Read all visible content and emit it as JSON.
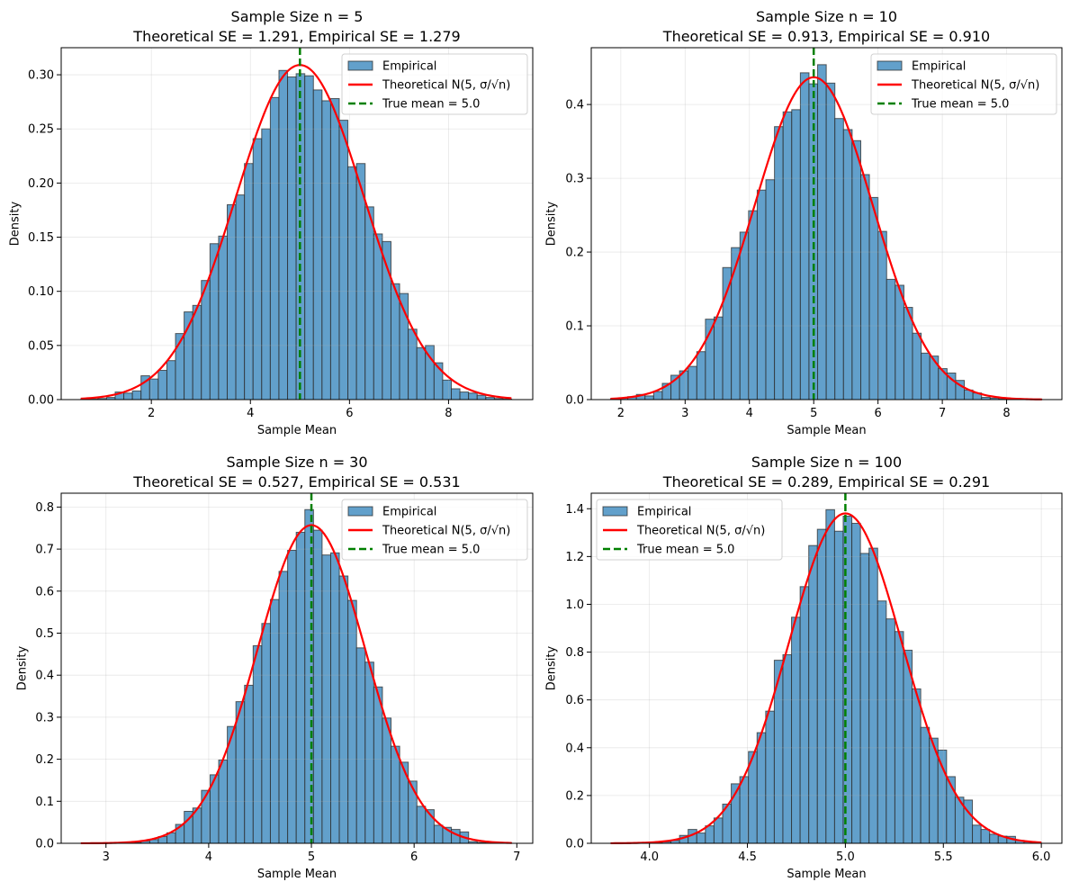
{
  "chart_data": [
    {
      "type": "bar",
      "kind": "histogram",
      "title": "Sample Size n = 5",
      "subtitle": "Theoretical SE = 1.291, Empirical SE = 1.279",
      "xlabel": "Sample Mean",
      "ylabel": "Density",
      "xlim": [
        0.18,
        9.7
      ],
      "ylim": [
        0,
        0.325
      ],
      "xticks": [
        2,
        4,
        6,
        8
      ],
      "xtick_labels": [
        "2",
        "4",
        "6",
        "8"
      ],
      "yticks": [
        0,
        0.05,
        0.1,
        0.15,
        0.2,
        0.25,
        0.3
      ],
      "ytick_labels": [
        "0.00",
        "0.05",
        "0.10",
        "0.15",
        "0.20",
        "0.25",
        "0.30"
      ],
      "grid": true,
      "bin_start": 0.574,
      "bin_width": 0.174,
      "values": [
        0.0003,
        0.0005,
        0.001,
        0.002,
        0.007,
        0.006,
        0.008,
        0.022,
        0.019,
        0.027,
        0.036,
        0.061,
        0.081,
        0.087,
        0.11,
        0.144,
        0.151,
        0.18,
        0.189,
        0.218,
        0.241,
        0.25,
        0.279,
        0.304,
        0.298,
        0.301,
        0.299,
        0.286,
        0.276,
        0.278,
        0.258,
        0.215,
        0.218,
        0.178,
        0.153,
        0.146,
        0.107,
        0.098,
        0.065,
        0.048,
        0.05,
        0.034,
        0.018,
        0.01,
        0.007,
        0.006,
        0.004,
        0.002,
        0.001,
        0.0005
      ],
      "theoretical": {
        "mean": 5,
        "se": 1.291,
        "x_range": [
          0.574,
          9.27
        ]
      },
      "true_mean": 5.0,
      "legend": {
        "placement": "upper-right",
        "entries": [
          "Empirical",
          "Theoretical N(5, σ/√n)",
          "True mean = 5.0"
        ]
      }
    },
    {
      "type": "bar",
      "kind": "histogram",
      "title": "Sample Size n = 10",
      "subtitle": "Theoretical SE = 0.913, Empirical SE = 0.910",
      "xlabel": "Sample Mean",
      "ylabel": "Density",
      "xlim": [
        1.54,
        8.86
      ],
      "ylim": [
        0,
        0.477
      ],
      "xticks": [
        2,
        3,
        4,
        5,
        6,
        7,
        8
      ],
      "xtick_labels": [
        "2",
        "3",
        "4",
        "5",
        "6",
        "7",
        "8"
      ],
      "yticks": [
        0,
        0.1,
        0.2,
        0.3,
        0.4
      ],
      "ytick_labels": [
        "0.0",
        "0.1",
        "0.2",
        "0.3",
        "0.4"
      ],
      "grid": true,
      "bin_start": 1.84,
      "bin_width": 0.1342,
      "values": [
        0.001,
        0.002,
        0.004,
        0.007,
        0.005,
        0.011,
        0.022,
        0.033,
        0.039,
        0.045,
        0.065,
        0.109,
        0.112,
        0.179,
        0.206,
        0.227,
        0.256,
        0.284,
        0.298,
        0.37,
        0.39,
        0.393,
        0.443,
        0.428,
        0.454,
        0.429,
        0.381,
        0.366,
        0.351,
        0.305,
        0.274,
        0.228,
        0.163,
        0.155,
        0.125,
        0.09,
        0.063,
        0.059,
        0.042,
        0.036,
        0.026,
        0.013,
        0.009,
        0.003,
        0.002,
        0.001,
        0.001,
        0.0005,
        0,
        0.0003
      ],
      "theoretical": {
        "mean": 5,
        "se": 0.913,
        "x_range": [
          1.84,
          8.55
        ]
      },
      "true_mean": 5.0,
      "legend": {
        "placement": "upper-right",
        "entries": [
          "Empirical",
          "Theoretical N(5, σ/√n)",
          "True mean = 5.0"
        ]
      }
    },
    {
      "type": "bar",
      "kind": "histogram",
      "title": "Sample Size n = 30",
      "subtitle": "Theoretical SE = 0.527, Empirical SE = 0.531",
      "xlabel": "Sample Mean",
      "ylabel": "Density",
      "xlim": [
        2.564,
        7.155
      ],
      "ylim": [
        0,
        0.833
      ],
      "xticks": [
        3,
        4,
        5,
        6,
        7
      ],
      "xtick_labels": [
        "3",
        "4",
        "5",
        "6",
        "7"
      ],
      "yticks": [
        0,
        0.1,
        0.2,
        0.3,
        0.4,
        0.5,
        0.6,
        0.7,
        0.8
      ],
      "ytick_labels": [
        "0.0",
        "0.1",
        "0.2",
        "0.3",
        "0.4",
        "0.5",
        "0.6",
        "0.7",
        "0.8"
      ],
      "grid": true,
      "bin_start": 2.755,
      "bin_width": 0.0839,
      "values": [
        0,
        0.0005,
        0,
        0.001,
        0.001,
        0.001,
        0.002,
        0.005,
        0.009,
        0.016,
        0.025,
        0.045,
        0.076,
        0.084,
        0.126,
        0.163,
        0.198,
        0.278,
        0.337,
        0.376,
        0.47,
        0.523,
        0.58,
        0.647,
        0.697,
        0.74,
        0.794,
        0.745,
        0.686,
        0.691,
        0.636,
        0.578,
        0.465,
        0.431,
        0.372,
        0.298,
        0.231,
        0.193,
        0.148,
        0.088,
        0.08,
        0.043,
        0.038,
        0.033,
        0.027,
        0.004,
        0.002,
        0.001,
        0,
        0.001
      ],
      "theoretical": {
        "mean": 5,
        "se": 0.527,
        "x_range": [
          2.755,
          6.95
        ]
      },
      "true_mean": 5.0,
      "legend": {
        "placement": "upper-right",
        "entries": [
          "Empirical",
          "Theoretical N(5, σ/√n)",
          "True mean = 5.0"
        ]
      }
    },
    {
      "type": "bar",
      "kind": "histogram",
      "title": "Sample Size n = 100",
      "subtitle": "Theoretical SE = 0.289, Empirical SE = 0.291",
      "xlabel": "Sample Mean",
      "ylabel": "Density",
      "xlim": [
        3.703,
        6.105
      ],
      "ylim": [
        0,
        1.465
      ],
      "xticks": [
        4.0,
        4.5,
        5.0,
        5.5,
        6.0
      ],
      "xtick_labels": [
        "4.0",
        "4.5",
        "5.0",
        "5.5",
        "6.0"
      ],
      "yticks": [
        0,
        0.2,
        0.4,
        0.6,
        0.8,
        1.0,
        1.2,
        1.4
      ],
      "ytick_labels": [
        "0.0",
        "0.2",
        "0.4",
        "0.6",
        "0.8",
        "1.0",
        "1.2",
        "1.4"
      ],
      "grid": true,
      "bin_start": 3.802,
      "bin_width": 0.04396,
      "values": [
        0.0005,
        0.001,
        0.001,
        0.002,
        0.003,
        0.004,
        0.006,
        0.012,
        0.033,
        0.058,
        0.043,
        0.073,
        0.106,
        0.164,
        0.249,
        0.279,
        0.384,
        0.463,
        0.553,
        0.766,
        0.789,
        0.946,
        1.074,
        1.246,
        1.314,
        1.396,
        1.306,
        1.369,
        1.339,
        1.213,
        1.235,
        1.014,
        0.939,
        0.886,
        0.808,
        0.646,
        0.485,
        0.44,
        0.39,
        0.279,
        0.193,
        0.181,
        0.076,
        0.058,
        0.038,
        0.03,
        0.029,
        0.012,
        0.006,
        0.004
      ],
      "theoretical": {
        "mean": 5,
        "se": 0.289,
        "x_range": [
          3.802,
          6.0
        ]
      },
      "true_mean": 5.0,
      "legend": {
        "placement": "upper-left",
        "entries": [
          "Empirical",
          "Theoretical N(5, σ/√n)",
          "True mean = 5.0"
        ]
      }
    }
  ],
  "colors": {
    "bar_fill": "#62a0cb",
    "bar_edge": "#2a2a2a",
    "curve": "#ff0000",
    "mean_line": "#008000",
    "grid": "#b0b0b0"
  }
}
